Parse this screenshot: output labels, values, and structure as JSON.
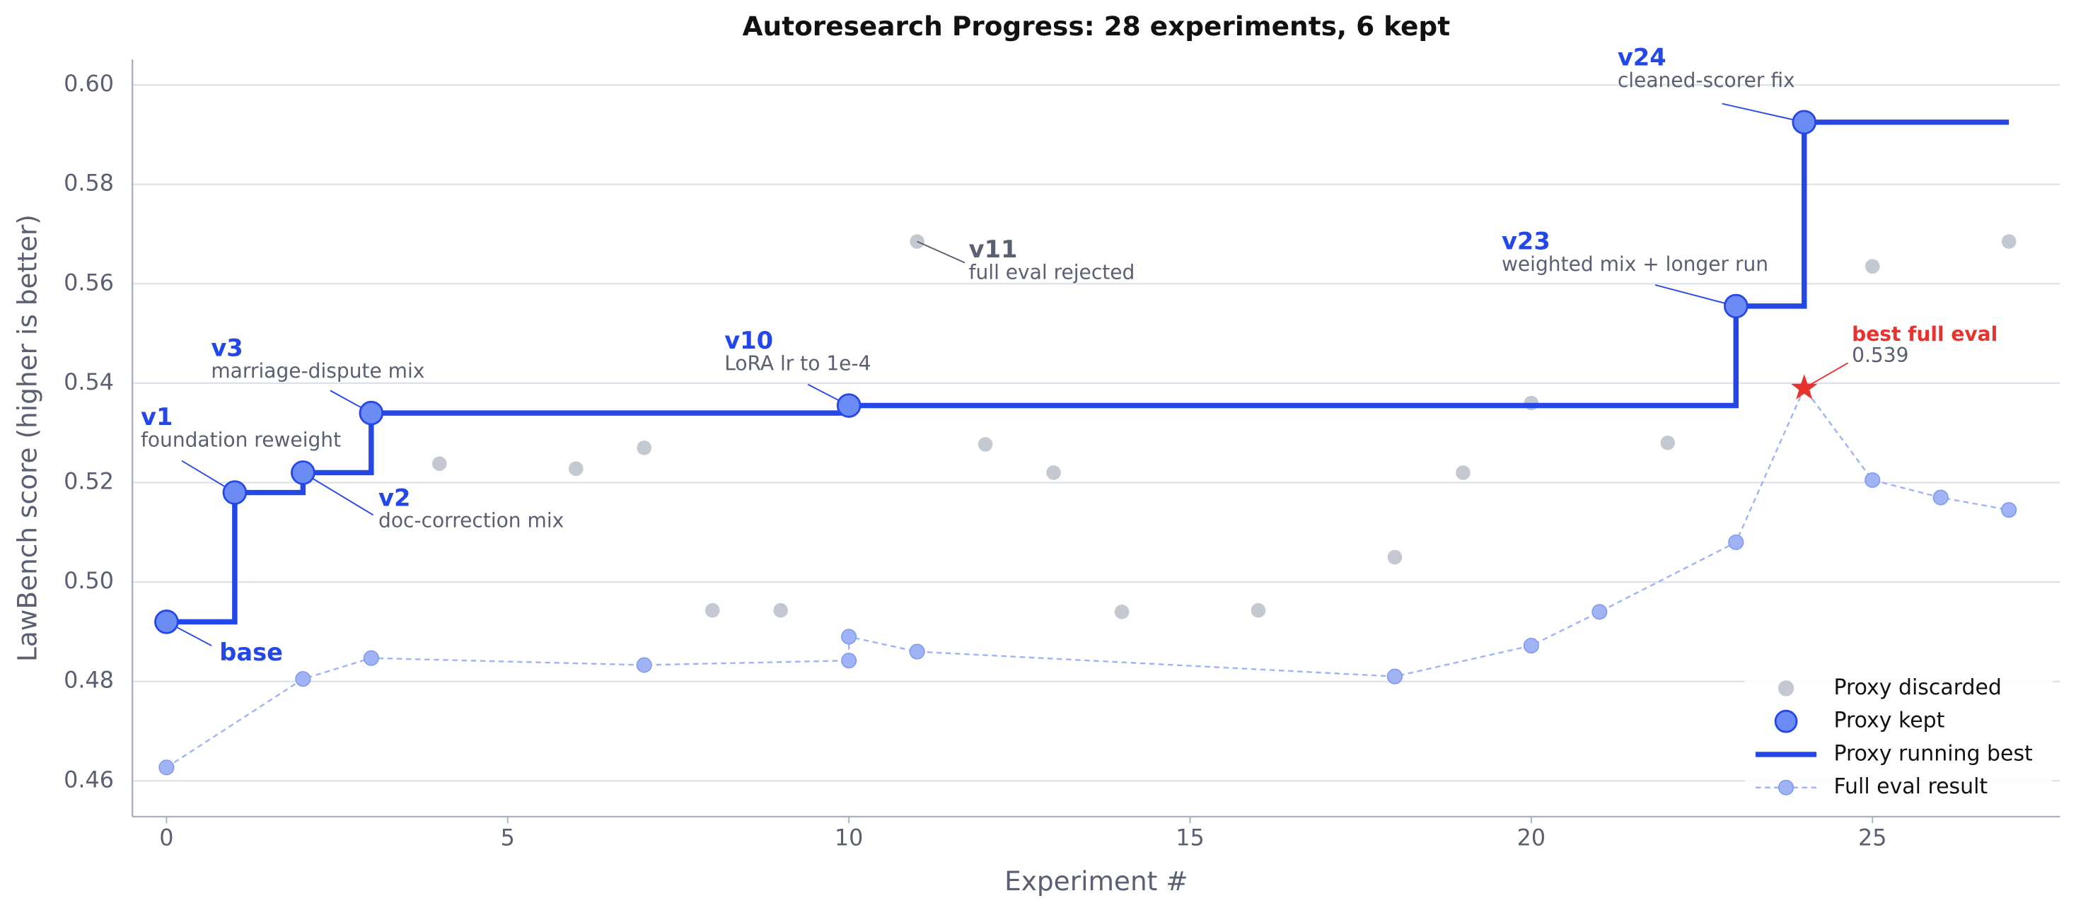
{
  "chart_data": {
    "type": "progress",
    "title": "Autoresearch Progress: 28 experiments, 6 kept",
    "x_label": "Experiment #",
    "y_label": "LawBench score (higher is better)",
    "xlim": [
      -0.5,
      27.75
    ],
    "ylim": [
      0.4528,
      0.6051
    ],
    "xticks": [
      0,
      5,
      10,
      15,
      20,
      25
    ],
    "yticks": [
      0.46,
      0.48,
      {
        "value": 0.5,
        "label": "0.50"
      },
      0.52,
      0.54,
      0.56,
      0.58,
      {
        "value": 0.6,
        "label": "0.60"
      }
    ],
    "grid": true,
    "legend": "lower right",
    "series": [
      {
        "name": "Proxy discarded",
        "color": "#c4c8d0",
        "x": [
          4,
          6,
          7,
          8,
          9,
          11,
          12,
          13,
          14,
          16,
          18,
          19,
          20,
          22,
          25,
          27
        ],
        "values": [
          0.5238,
          0.5228,
          0.527,
          0.4943,
          0.4943,
          0.5685,
          0.5277,
          0.522,
          0.494,
          0.4943,
          0.505,
          0.522,
          0.536,
          0.528,
          0.5635,
          0.5685
        ],
        "annotation": {
          "index": 5,
          "label": "v11",
          "note": "full eval rejected"
        }
      },
      {
        "name": "Proxy kept",
        "color": "#6b8cf5",
        "x": [
          0,
          1,
          2,
          3,
          10,
          23,
          24
        ],
        "values": [
          0.492,
          0.518,
          0.522,
          0.534,
          0.5355,
          0.5555,
          0.5925
        ],
        "labels": [
          "base",
          "v1",
          "v2",
          "v3",
          "v10",
          "v23",
          "v24"
        ],
        "notes": [
          null,
          "foundation reweight",
          "doc-correction mix",
          "marriage-dispute mix",
          "LoRA lr to 1e-4",
          "weighted mix + longer run",
          "cleaned-scorer fix"
        ]
      },
      {
        "name": "Proxy running best",
        "color": "#2447e8"
      },
      {
        "name": "Full eval result",
        "color": "#a0b4f5",
        "x": [
          0,
          2,
          3,
          7,
          10,
          10,
          11,
          18,
          20,
          21,
          23,
          24,
          25,
          26,
          27
        ],
        "values": [
          0.4627,
          0.4805,
          0.4847,
          0.4833,
          0.4842,
          0.489,
          0.486,
          0.481,
          0.4872,
          0.494,
          0.508,
          0.539,
          0.5205,
          0.517,
          0.5145
        ]
      }
    ],
    "best": {
      "label": "best full eval",
      "x": 24,
      "y": 0.539,
      "color": "#e8322e"
    }
  }
}
